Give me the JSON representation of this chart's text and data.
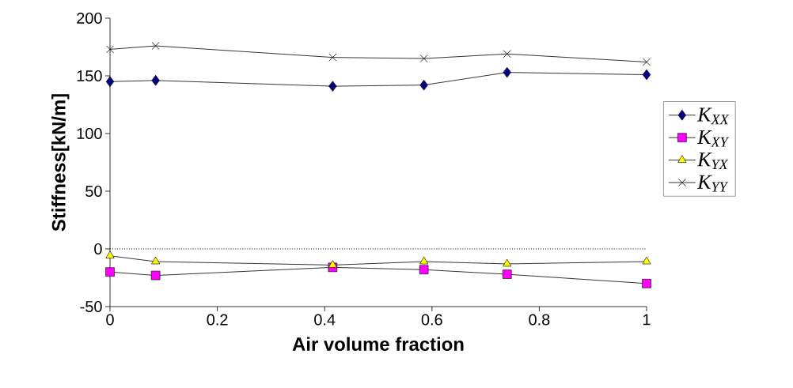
{
  "chart_data": {
    "type": "line",
    "xlabel": "Air volume fraction",
    "ylabel": "Stiffness[kN/m]",
    "x": [
      0,
      0.085,
      0.415,
      0.585,
      0.74,
      1
    ],
    "series": [
      {
        "name": "K$_{XX}$",
        "color": "#000080",
        "marker": "diamond",
        "values": [
          145,
          146,
          141,
          142,
          153,
          151
        ]
      },
      {
        "name": "K$_{XY}$",
        "color": "#ff00ff",
        "marker": "square",
        "values": [
          -20,
          -23,
          -16,
          -18,
          -22,
          -30
        ]
      },
      {
        "name": "K$_{YX}$",
        "color": "#ffff00",
        "marker": "triangle",
        "values": [
          -6,
          -11,
          -14,
          -11,
          -13,
          -11
        ]
      },
      {
        "name": "K$_{YY}$",
        "color": "#000000",
        "marker": "cross",
        "values": [
          173,
          176,
          166,
          165,
          169,
          162
        ]
      }
    ],
    "xlim": [
      0,
      1
    ],
    "ylim": [
      -50,
      200
    ],
    "xticks": [
      0,
      0.2,
      0.4,
      0.6,
      0.8,
      1
    ],
    "yticks": [
      -50,
      0,
      50,
      100,
      150,
      200
    ],
    "ref_lines": [
      {
        "axis": "y",
        "value": 0,
        "line_style": "dotted"
      }
    ],
    "grid": false,
    "legend": "right",
    "line_style": "solid"
  }
}
